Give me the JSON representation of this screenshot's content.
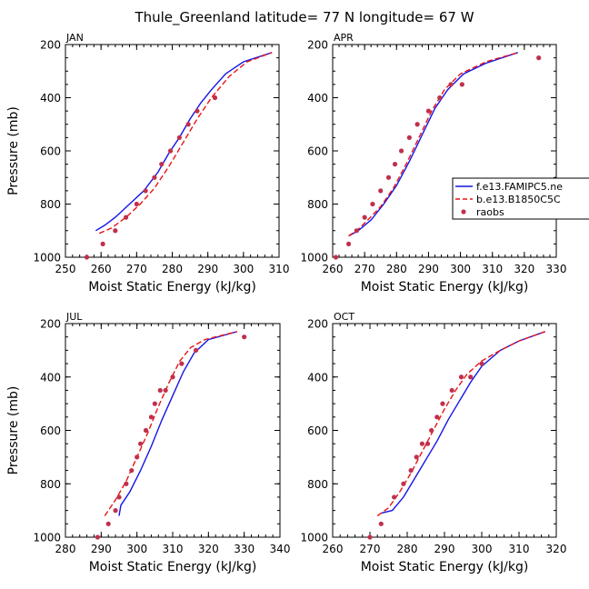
{
  "figure_title": "Thule_Greenland  latitude= 77 N longitude= 67 W",
  "legend": {
    "model1": "f.e13.FAMIPC5.ne",
    "model2": "b.e13.B1850C5C",
    "obs": "raobs"
  },
  "colors": {
    "model1": "#1414e6",
    "model2": "#e81414",
    "obs": "#c0304c"
  },
  "chart_data": [
    {
      "type": "line",
      "panel": "JAN",
      "xlabel": "Moist Static Energy (kJ/kg)",
      "ylabel": "Pressure (mb)",
      "xlim": [
        250,
        310
      ],
      "ylim": [
        1000,
        200
      ],
      "xticks": [
        250,
        260,
        270,
        280,
        290,
        300,
        310
      ],
      "yticks": [
        200,
        400,
        600,
        800,
        1000
      ],
      "series": [
        {
          "name": "f.e13.FAMIPC5.ne",
          "style": "solid",
          "x": [
            258.5,
            261,
            264,
            268,
            272,
            276,
            279,
            282,
            285,
            288,
            291,
            295,
            300,
            308
          ],
          "y": [
            900,
            880,
            850,
            800,
            750,
            680,
            610,
            550,
            480,
            420,
            370,
            310,
            265,
            230
          ]
        },
        {
          "name": "b.e13.B1850C5C",
          "style": "dashed",
          "x": [
            259.5,
            263,
            267,
            271,
            275,
            279,
            283,
            287,
            291,
            296,
            301,
            308
          ],
          "y": [
            910,
            890,
            850,
            800,
            740,
            660,
            570,
            480,
            400,
            320,
            265,
            230
          ]
        },
        {
          "name": "raobs",
          "style": "dots",
          "x": [
            256,
            260.5,
            264,
            267,
            270,
            272.5,
            275,
            277,
            279.5,
            282,
            284.5,
            287,
            292
          ],
          "y": [
            1000,
            950,
            900,
            850,
            800,
            750,
            700,
            650,
            600,
            550,
            500,
            450,
            400
          ]
        }
      ]
    },
    {
      "type": "line",
      "panel": "APR",
      "xlabel": "Moist Static Energy (kJ/kg)",
      "ylabel": "",
      "xlim": [
        260,
        330
      ],
      "ylim": [
        1000,
        200
      ],
      "xticks": [
        260,
        270,
        280,
        290,
        300,
        310,
        320,
        330
      ],
      "yticks": [
        200,
        400,
        600,
        800,
        1000
      ],
      "series": [
        {
          "name": "f.e13.FAMIPC5.ne",
          "style": "solid",
          "x": [
            265,
            268,
            272,
            276,
            280,
            284,
            288,
            292,
            296,
            301,
            308,
            318
          ],
          "y": [
            920,
            900,
            860,
            800,
            730,
            640,
            540,
            440,
            370,
            310,
            270,
            230
          ]
        },
        {
          "name": "b.e13.B1850C5C",
          "style": "dashed",
          "x": [
            265,
            268,
            271,
            275,
            279,
            283,
            287,
            291,
            295,
            300,
            308,
            318
          ],
          "y": [
            920,
            895,
            860,
            810,
            740,
            650,
            550,
            450,
            370,
            310,
            265,
            230
          ]
        },
        {
          "name": "raobs",
          "style": "dots",
          "x": [
            261,
            265,
            267.5,
            270,
            272.5,
            275,
            277.5,
            279.5,
            281.5,
            284,
            286.5,
            290,
            293.5,
            297,
            300.5,
            324.5
          ],
          "y": [
            1000,
            950,
            900,
            850,
            800,
            750,
            700,
            650,
            600,
            550,
            500,
            450,
            400,
            350,
            350,
            250
          ]
        }
      ]
    },
    {
      "type": "line",
      "panel": "JUL",
      "xlabel": "Moist Static Energy (kJ/kg)",
      "ylabel": "Pressure (mb)",
      "xlim": [
        280,
        340
      ],
      "ylim": [
        1000,
        200
      ],
      "xticks": [
        280,
        290,
        300,
        310,
        320,
        330,
        340
      ],
      "yticks": [
        200,
        400,
        600,
        800,
        1000
      ],
      "series": [
        {
          "name": "f.e13.FAMIPC5.ne",
          "style": "solid",
          "x": [
            295,
            295.5,
            298,
            301,
            304,
            307,
            310,
            313,
            316,
            320,
            328
          ],
          "y": [
            920,
            880,
            830,
            750,
            660,
            560,
            470,
            380,
            310,
            260,
            230
          ]
        },
        {
          "name": "b.e13.B1850C5C",
          "style": "dashed",
          "x": [
            291,
            294,
            297,
            300,
            303,
            306,
            309,
            312,
            315,
            319,
            328
          ],
          "y": [
            920,
            860,
            790,
            700,
            610,
            510,
            420,
            340,
            290,
            260,
            230
          ]
        },
        {
          "name": "raobs",
          "style": "dots",
          "x": [
            289,
            292,
            294,
            295,
            297,
            298.5,
            300,
            301,
            302.5,
            304,
            305,
            306.5,
            308,
            310,
            312.5,
            316.5,
            330
          ],
          "y": [
            1000,
            950,
            900,
            850,
            800,
            750,
            700,
            650,
            600,
            550,
            500,
            450,
            450,
            400,
            350,
            300,
            250
          ]
        }
      ]
    },
    {
      "type": "line",
      "panel": "OCT",
      "xlabel": "Moist Static Energy (kJ/kg)",
      "ylabel": "",
      "xlim": [
        260,
        320
      ],
      "ylim": [
        1000,
        200
      ],
      "xticks": [
        260,
        270,
        280,
        290,
        300,
        310,
        320
      ],
      "yticks": [
        200,
        400,
        600,
        800,
        1000
      ],
      "series": [
        {
          "name": "f.e13.FAMIPC5.ne",
          "style": "solid",
          "x": [
            273,
            276,
            279,
            282,
            285,
            288,
            291,
            294,
            297,
            300,
            305,
            310,
            317
          ],
          "y": [
            910,
            900,
            850,
            780,
            710,
            640,
            560,
            490,
            420,
            360,
            300,
            265,
            230
          ]
        },
        {
          "name": "b.e13.B1850C5C",
          "style": "dashed",
          "x": [
            272,
            275,
            278,
            281,
            284,
            287,
            290,
            293,
            296,
            300,
            305,
            310,
            317
          ],
          "y": [
            920,
            890,
            830,
            760,
            680,
            600,
            520,
            450,
            390,
            340,
            300,
            265,
            230
          ]
        },
        {
          "name": "raobs",
          "style": "dots",
          "x": [
            270,
            273,
            276.5,
            279,
            281,
            282.5,
            284,
            285.5,
            286.5,
            288,
            289.5,
            292,
            294.5,
            297,
            300
          ],
          "y": [
            1000,
            950,
            850,
            800,
            750,
            700,
            650,
            650,
            600,
            550,
            500,
            450,
            400,
            400,
            350
          ]
        }
      ]
    }
  ]
}
